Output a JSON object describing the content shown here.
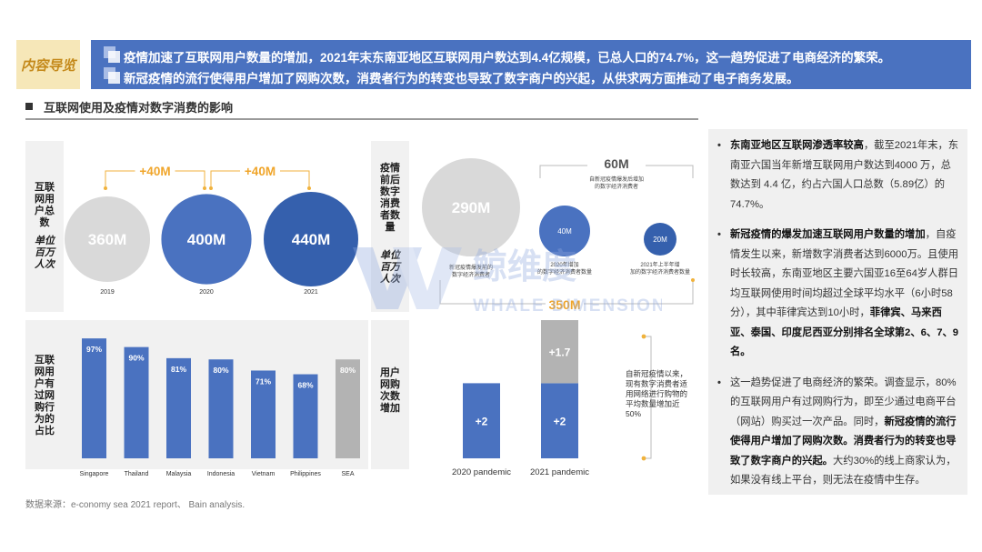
{
  "header": {
    "tag": "内容导览",
    "line1": "疫情加速了互联网用户数量的增加，2021年末东南亚地区互联网用户数达到4.4亿规模，已总人口的74.7%，这一趋势促进了电商经济的繁荣。",
    "line2": "新冠疫情的流行使得用户增加了网购次数，消费者行为的转变也导致了数字商户的兴起，从供求两方面推动了电子商务发展。"
  },
  "section_title": "互联网使用及疫情对数字消费的影响",
  "panels": {
    "users_total": {
      "label": "互联网用户总数",
      "unit": "单位百万人次"
    },
    "digital_consumers": {
      "label": "疫情前后数字消费者数量",
      "unit": "单位百万人次"
    },
    "online_shopping": {
      "label": "互联网用户有过网购行为的占比"
    },
    "purchase_frequency": {
      "label": "用户网购次数增加"
    }
  },
  "chart_data": [
    {
      "type": "bubble",
      "categories": [
        "2019",
        "2020",
        "2021"
      ],
      "values": [
        360,
        400,
        440
      ],
      "labels": [
        "360M",
        "400M",
        "440M"
      ],
      "deltas": [
        "+40M",
        "+40M"
      ],
      "colors": [
        "#d9d9d9",
        "#4a72c0",
        "#3560ad"
      ]
    },
    {
      "type": "bubble",
      "items": [
        {
          "label": "290M",
          "value": 290,
          "caption": "新冠疫情爆发前的数字经济消费者",
          "color": "#d9d9d9"
        },
        {
          "label": "40M",
          "value": 40,
          "caption": "2020年增加的数字经济消费者数量",
          "color": "#4a72c0"
        },
        {
          "label": "20M",
          "value": 20,
          "caption": "2021年上半年增加的数字经济消费者数量",
          "color": "#3560ad"
        }
      ],
      "group_total": {
        "label": "60M",
        "caption": "自新冠疫情爆发后增加的数字经济消费者"
      },
      "grand_total": "350M"
    },
    {
      "type": "bar",
      "categories": [
        "Singapore",
        "Thailand",
        "Malaysia",
        "Indonesia",
        "Vietnam",
        "Philippines",
        "SEA"
      ],
      "values": [
        97,
        90,
        81,
        80,
        71,
        68,
        80
      ],
      "value_labels": [
        "97%",
        "90%",
        "81%",
        "80%",
        "71%",
        "68%",
        "80%"
      ],
      "ylim": [
        0,
        100
      ],
      "colors": {
        "country": "#4a72c0",
        "sea": "#b3b3b3"
      }
    },
    {
      "type": "bar",
      "stacked": true,
      "categories": [
        "2020 pandemic",
        "2021 pandemic"
      ],
      "series": [
        {
          "values": [
            2,
            2
          ],
          "labels": [
            "+2",
            "+2"
          ],
          "color": "#4a72c0"
        },
        {
          "values": [
            0,
            1.7
          ],
          "labels": [
            "",
            "+1.7"
          ],
          "color": "#b3b3b3"
        }
      ],
      "ylim": [
        0,
        4
      ],
      "annotation": "自新冠疫情以来，现有数字消费者适用网络进行购物的平均数量增加近50%"
    }
  ],
  "bullets": [
    {
      "bold": "东南亚地区互联网渗透率较高",
      "text": "，截至2021年末，东南亚六国当年新增互联网用户数达到4000 万，总数达到 4.4 亿，约占六国人口总数（5.89亿）的74.7%。"
    },
    {
      "bold": "新冠疫情的爆发加速互联网用户数量的增加",
      "text": "，自疫情发生以来，新增数字消费者达到6000万。且使用时长较高，东南亚地区主要六国亚16至64岁人群日均互联网使用时间均超过全球平均水平（6小时58分），其中菲律宾达到10小时，",
      "bold2": "菲律宾、马来西亚、泰国、印度尼西亚分别排名全球第2、6、7、9名。",
      "text2": ""
    },
    {
      "text0": "这一趋势促进了电商经济的繁荣。调查显示，80%的互联网用户有过网购行为，即至少通过电商平台（网站）购买过一次产品。同时，",
      "bold": "新冠疫情的流行使得用户增加了网购次数。消费者行为的转变也导致了数字商户的兴起。",
      "text": "大约30%的线上商家认为，如果没有线上平台，则无法在疫情中生存。"
    }
  ],
  "source": "数据来源：e-conomy sea 2021 report、 Bain analysis.",
  "watermark": {
    "cn": "鲸维度",
    "en": "WHALE DIMENSION"
  }
}
